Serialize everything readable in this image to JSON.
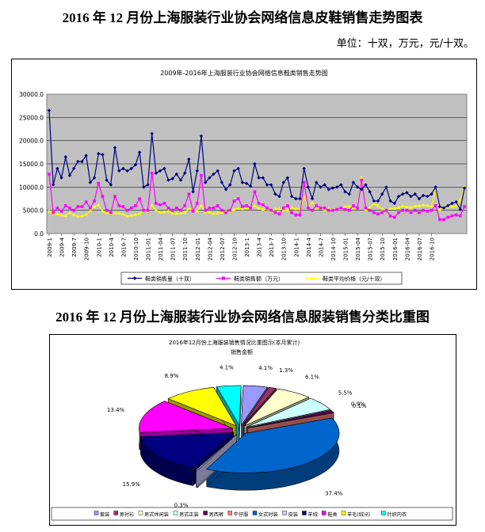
{
  "page": {
    "title1": "2016 年 12 月份上海服装行业协会网络信息皮鞋销售走势图表",
    "unit": "单位：十双，万元，元/十双。",
    "title2": "2016 年 12 月份上海服装行业协会网络信息服装销售分类比重图"
  },
  "chart_data": [
    {
      "type": "line",
      "title": "2009年-2016年上海服装行业协会网络信息鞋类销售走势图",
      "ylim": [
        0,
        30000
      ],
      "yticks": [
        "30000.0",
        "25000.0",
        "20000.0",
        "15000.0",
        "10000.0",
        "5000.0",
        "0.0"
      ],
      "xtick_labels": [
        "2009-1",
        "2009-4",
        "2009-7",
        "2009-10",
        "2010-1",
        "2010-4",
        "2010-7",
        "2010-10",
        "2011-01",
        "2011-04",
        "2011-07",
        "2011-10",
        "2012-01",
        "2012-04",
        "2012-07",
        "2012-10",
        "2013-1",
        "2013-4",
        "2013-7",
        "2013-10",
        "2014-1",
        "2014-4",
        "2014-7",
        "2014-10",
        "2015-01",
        "2015-04",
        "2015-07",
        "2015-10",
        "2016-01",
        "2016-04",
        "2016-07",
        "2016-10"
      ],
      "grid": true,
      "legend_position": "bottom",
      "colors": {
        "sales_qty": "#000080",
        "sales_amt": "#ff00ff",
        "avg_price": "#ffff00",
        "plot_bg": "#c0c0c0"
      },
      "series": [
        {
          "name": "鞋类销售量（十双）",
          "key": "sales_qty",
          "marker": "diamond",
          "values": [
            26500,
            10500,
            14000,
            12000,
            16500,
            12500,
            14000,
            15500,
            15500,
            16800,
            11000,
            12000,
            17200,
            17000,
            11500,
            10500,
            18500,
            13500,
            14000,
            13500,
            14000,
            14800,
            17500,
            10000,
            10500,
            21500,
            13000,
            13500,
            14000,
            11500,
            11800,
            12800,
            11500,
            13000,
            16000,
            9000,
            13500,
            21000,
            11000,
            12000,
            12800,
            13500,
            11000,
            9500,
            10500,
            13500,
            14000,
            11000,
            10800,
            10200,
            15000,
            12000,
            12000,
            10500,
            10500,
            8500,
            8000,
            11000,
            12000,
            8000,
            7500,
            7500,
            14000,
            10000,
            7500,
            11000,
            10000,
            10500,
            9500,
            9800,
            10000,
            10500,
            9000,
            8500,
            11000,
            10000,
            9500,
            10500,
            9000,
            7000,
            7000,
            8500,
            10000,
            7000,
            6500,
            8000,
            8500,
            8800,
            8000,
            8500,
            7500,
            8200,
            8000,
            8500,
            10000,
            5800,
            5500,
            6000,
            6500,
            6800,
            5200,
            9800
          ]
        },
        {
          "name": "鞋类销售额（万元）",
          "key": "sales_amt",
          "marker": "square",
          "values": [
            12800,
            4500,
            5500,
            4800,
            6000,
            5500,
            5000,
            5800,
            5800,
            6800,
            5500,
            7000,
            10800,
            8000,
            5000,
            4500,
            8000,
            6000,
            5800,
            5000,
            5500,
            6000,
            7500,
            5000,
            5000,
            13000,
            6500,
            6200,
            6500,
            5500,
            5000,
            5500,
            5000,
            6000,
            8500,
            4800,
            6500,
            12500,
            5000,
            5500,
            5500,
            6000,
            5000,
            4500,
            5000,
            7000,
            7500,
            5800,
            6000,
            5500,
            9000,
            6500,
            6200,
            5500,
            5000,
            4500,
            4200,
            5500,
            6000,
            4500,
            4000,
            4000,
            11000,
            5500,
            5000,
            6000,
            5500,
            5500,
            5000,
            5000,
            5200,
            5500,
            5200,
            5000,
            6000,
            5500,
            11500,
            5500,
            5000,
            4500,
            4200,
            4500,
            5000,
            3800,
            3500,
            4500,
            5000,
            5000,
            4500,
            5000,
            4500,
            5000,
            4800,
            5000,
            6000,
            3000,
            3000,
            3500,
            3800,
            4000,
            3800,
            5800
          ]
        },
        {
          "name": "鞋类平均价格（元/十双）",
          "key": "avg_price",
          "marker": "triangle",
          "values": [
            4800,
            4300,
            4200,
            4000,
            3800,
            4500,
            4000,
            3700,
            3800,
            4100,
            4900,
            5800,
            6200,
            4800,
            4500,
            4300,
            4400,
            4400,
            4200,
            3700,
            3900,
            4000,
            4300,
            4900,
            4800,
            6100,
            5000,
            4600,
            4600,
            4800,
            4300,
            4300,
            4400,
            4500,
            5300,
            5300,
            4800,
            6000,
            4600,
            4600,
            4300,
            4400,
            4600,
            4700,
            4800,
            5200,
            5400,
            5300,
            5500,
            5400,
            6000,
            5400,
            5200,
            5300,
            4800,
            5300,
            5300,
            5000,
            5000,
            5600,
            5300,
            5300,
            7900,
            5500,
            6700,
            5500,
            5500,
            5200,
            5300,
            5100,
            5200,
            5300,
            5800,
            5900,
            5500,
            5500,
            12100,
            5200,
            5600,
            6400,
            6000,
            5300,
            5000,
            5400,
            5400,
            5600,
            5900,
            5700,
            5600,
            5900,
            6000,
            6100,
            6000,
            5900,
            9600,
            5200,
            5500,
            5800,
            5800,
            5900,
            7300,
            10100
          ]
        }
      ]
    },
    {
      "type": "pie",
      "title": "2016年12月份上海服装销售情况比重图示(本月累计)",
      "subtitle": "销售金额",
      "slices": [
        {
          "name": "套装",
          "value": 4.1,
          "label": "4.1%",
          "color": "#9999ff"
        },
        {
          "name": "男衬衫",
          "value": 1.3,
          "label": "1.3%",
          "color": "#993366"
        },
        {
          "name": "男式休闲装",
          "value": 6.1,
          "label": "6.1%",
          "color": "#ffffcc"
        },
        {
          "name": "男式正装",
          "value": 5.5,
          "label": "5.5%",
          "color": "#ccffff"
        },
        {
          "name": "男西裤",
          "value": 0.9,
          "label": "0.9%",
          "color": "#660066"
        },
        {
          "name": "牛仔服",
          "value": 0.1,
          "label": "0.1%",
          "color": "#ff8080"
        },
        {
          "name": "女式时装",
          "value": 37.4,
          "label": "37.4%",
          "color": "#0066cc"
        },
        {
          "name": "皮装",
          "value": 0.3,
          "label": "0.3%",
          "color": "#ccccff"
        },
        {
          "name": "羊绒",
          "value": 15.9,
          "label": "15.9%",
          "color": "#000080"
        },
        {
          "name": "鞋类",
          "value": 13.4,
          "label": "13.4%",
          "color": "#ff00ff"
        },
        {
          "name": "羊毛(绒)衫",
          "value": 8.9,
          "label": "8.9%",
          "color": "#ffff00"
        },
        {
          "name": "针织内衣",
          "value": 4.1,
          "label": "4.1%",
          "color": "#00ffff"
        }
      ]
    }
  ]
}
